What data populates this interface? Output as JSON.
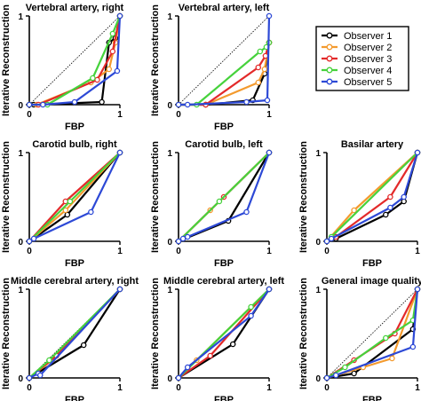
{
  "chart_data": [
    {
      "type": "line",
      "title": "Vertebral artery, right",
      "xlabel": "FBP",
      "ylabel": "Iterative Reconstruction",
      "xlim": [
        0,
        1
      ],
      "ylim": [
        0,
        1
      ],
      "xticks": [
        "0",
        "1"
      ],
      "yticks": [
        "0",
        "1"
      ],
      "diagonal": true,
      "series": [
        {
          "name": "Observer 1",
          "x": [
            0,
            0.05,
            0.8,
            0.88,
            0.95,
            1
          ],
          "y": [
            0,
            0,
            0.03,
            0.7,
            0.75,
            1
          ]
        },
        {
          "name": "Observer 2",
          "x": [
            0,
            0.08,
            0.68,
            0.88,
            0.95,
            1
          ],
          "y": [
            0,
            0,
            0.25,
            0.4,
            0.7,
            1
          ]
        },
        {
          "name": "Observer 3",
          "x": [
            0,
            0.1,
            0.75,
            0.92,
            1
          ],
          "y": [
            0,
            0,
            0.28,
            0.6,
            1
          ]
        },
        {
          "name": "Observer 4",
          "x": [
            0,
            0.2,
            0.7,
            0.92,
            1
          ],
          "y": [
            0,
            0,
            0.3,
            0.8,
            1
          ]
        },
        {
          "name": "Observer 5",
          "x": [
            0,
            0.15,
            0.5,
            0.97,
            1
          ],
          "y": [
            0,
            0,
            0.03,
            0.38,
            1
          ]
        }
      ]
    },
    {
      "type": "line",
      "title": "Vertebral artery, left",
      "xlabel": "FBP",
      "ylabel": "Iterative Reconstruction",
      "xlim": [
        0,
        1
      ],
      "ylim": [
        0,
        1
      ],
      "xticks": [
        "0",
        "1"
      ],
      "yticks": [
        "0",
        "1"
      ],
      "diagonal": true,
      "series": [
        {
          "name": "Observer 1",
          "x": [
            0,
            0.3,
            0.82,
            0.95,
            1
          ],
          "y": [
            0,
            0,
            0.05,
            0.35,
            0.7
          ]
        },
        {
          "name": "Observer 2",
          "x": [
            0,
            0.3,
            0.88,
            0.95,
            1
          ],
          "y": [
            0,
            0,
            0.25,
            0.4,
            0.7
          ]
        },
        {
          "name": "Observer 3",
          "x": [
            0,
            0.3,
            0.88,
            0.96,
            1
          ],
          "y": [
            0,
            0,
            0.42,
            0.55,
            0.7
          ]
        },
        {
          "name": "Observer 4",
          "x": [
            0,
            0.2,
            0.9,
            0.97,
            1
          ],
          "y": [
            0,
            0,
            0.6,
            0.65,
            0.7
          ]
        },
        {
          "name": "Observer 5",
          "x": [
            0,
            0.1,
            0.75,
            0.98,
            1
          ],
          "y": [
            0,
            0,
            0.03,
            0.05,
            1
          ]
        }
      ]
    },
    {
      "type": "line",
      "title": "Carotid bulb, right",
      "xlabel": "FBP",
      "ylabel": "Iterative Reconstruction",
      "xlim": [
        0,
        1
      ],
      "ylim": [
        0,
        1
      ],
      "xticks": [
        "0",
        "1"
      ],
      "yticks": [
        "0",
        "1"
      ],
      "diagonal": true,
      "series": [
        {
          "name": "Observer 1",
          "x": [
            0,
            0.42,
            1
          ],
          "y": [
            0,
            0.3,
            1
          ]
        },
        {
          "name": "Observer 2",
          "x": [
            0,
            0.4,
            1
          ],
          "y": [
            0,
            0.35,
            1
          ]
        },
        {
          "name": "Observer 3",
          "x": [
            0,
            0.4,
            1
          ],
          "y": [
            0,
            0.45,
            1
          ]
        },
        {
          "name": "Observer 4",
          "x": [
            0,
            0.45,
            1
          ],
          "y": [
            0,
            0.45,
            1
          ]
        },
        {
          "name": "Observer 5",
          "x": [
            0,
            0.05,
            0.68,
            1
          ],
          "y": [
            0,
            0.03,
            0.33,
            1
          ]
        }
      ]
    },
    {
      "type": "line",
      "title": "Carotid bulb, left",
      "xlabel": "FBP",
      "ylabel": "Iterative Reconstruction",
      "xlim": [
        0,
        1
      ],
      "ylim": [
        0,
        1
      ],
      "xticks": [
        "0",
        "1"
      ],
      "yticks": [
        "0",
        "1"
      ],
      "diagonal": false,
      "series": [
        {
          "name": "Observer 1",
          "x": [
            0,
            0.55,
            1
          ],
          "y": [
            0,
            0.23,
            1
          ]
        },
        {
          "name": "Observer 2",
          "x": [
            0,
            0.35,
            1
          ],
          "y": [
            0,
            0.35,
            1
          ]
        },
        {
          "name": "Observer 3",
          "x": [
            0,
            0.5,
            1
          ],
          "y": [
            0,
            0.5,
            1
          ]
        },
        {
          "name": "Observer 4",
          "x": [
            0,
            0.45,
            1
          ],
          "y": [
            0,
            0.45,
            1
          ]
        },
        {
          "name": "Observer 5",
          "x": [
            0,
            0.05,
            0.1,
            0.75,
            1
          ],
          "y": [
            0,
            0.03,
            0.05,
            0.33,
            1
          ]
        }
      ]
    },
    {
      "type": "line",
      "title": "Basilar artery",
      "xlabel": "FBP",
      "ylabel": "Iterative Reconstruction",
      "xlim": [
        0,
        1
      ],
      "ylim": [
        0,
        1
      ],
      "xticks": [
        "0",
        "1"
      ],
      "yticks": [
        "0",
        "1"
      ],
      "diagonal": true,
      "series": [
        {
          "name": "Observer 1",
          "x": [
            0,
            0.1,
            0.65,
            0.85,
            1
          ],
          "y": [
            0,
            0.03,
            0.3,
            0.45,
            1
          ]
        },
        {
          "name": "Observer 2",
          "x": [
            0,
            0.3,
            1
          ],
          "y": [
            0,
            0.35,
            1
          ]
        },
        {
          "name": "Observer 3",
          "x": [
            0,
            0.1,
            0.7,
            1
          ],
          "y": [
            0,
            0.05,
            0.5,
            1
          ]
        },
        {
          "name": "Observer 4",
          "x": [
            0,
            0.05,
            1
          ],
          "y": [
            0,
            0.05,
            1
          ]
        },
        {
          "name": "Observer 5",
          "x": [
            0,
            0.05,
            0.7,
            0.85,
            1
          ],
          "y": [
            0,
            0.03,
            0.38,
            0.5,
            1
          ]
        }
      ]
    },
    {
      "type": "line",
      "title": "Middle cerebral artery, right",
      "xlabel": "FBP",
      "ylabel": "Iterative Reconstruction",
      "xlim": [
        0,
        1
      ],
      "ylim": [
        0,
        1
      ],
      "xticks": [
        "0",
        "1"
      ],
      "yticks": [
        "0",
        "1"
      ],
      "diagonal": true,
      "series": [
        {
          "name": "Observer 1",
          "x": [
            0,
            0.6,
            1
          ],
          "y": [
            0,
            0.37,
            1
          ]
        },
        {
          "name": "Observer 2",
          "x": [
            0,
            0.25,
            1
          ],
          "y": [
            0,
            0.2,
            1
          ]
        },
        {
          "name": "Observer 3",
          "x": [
            0,
            0.3,
            1
          ],
          "y": [
            0,
            0.25,
            1
          ]
        },
        {
          "name": "Observer 4",
          "x": [
            0,
            0.22,
            1
          ],
          "y": [
            0,
            0.2,
            1
          ]
        },
        {
          "name": "Observer 5",
          "x": [
            0,
            0.1,
            0.12,
            1
          ],
          "y": [
            0,
            0.05,
            0.03,
            1
          ]
        }
      ]
    },
    {
      "type": "line",
      "title": "Middle cerebral artery, left",
      "xlabel": "FBP",
      "ylabel": "Iterative Reconstruction",
      "xlim": [
        0,
        1
      ],
      "ylim": [
        0,
        1
      ],
      "xticks": [
        "0",
        "1"
      ],
      "yticks": [
        "0",
        "1"
      ],
      "diagonal": true,
      "series": [
        {
          "name": "Observer 1",
          "x": [
            0,
            0.6,
            1
          ],
          "y": [
            0,
            0.38,
            1
          ]
        },
        {
          "name": "Observer 2",
          "x": [
            0,
            0.2,
            1
          ],
          "y": [
            0,
            0.2,
            1
          ]
        },
        {
          "name": "Observer 3",
          "x": [
            0,
            0.35,
            1
          ],
          "y": [
            0,
            0.25,
            1
          ]
        },
        {
          "name": "Observer 4",
          "x": [
            0,
            0.8,
            1
          ],
          "y": [
            0,
            0.8,
            1
          ]
        },
        {
          "name": "Observer 5",
          "x": [
            0,
            0.1,
            0.8,
            1
          ],
          "y": [
            0,
            0.12,
            0.7,
            1
          ]
        }
      ]
    },
    {
      "type": "line",
      "title": "General image quality",
      "xlabel": "FBP",
      "ylabel": "Iterative Reconstruction",
      "xlim": [
        0,
        1
      ],
      "ylim": [
        0,
        1
      ],
      "xticks": [
        "0",
        "1"
      ],
      "yticks": [
        "0",
        "1"
      ],
      "diagonal": true,
      "series": [
        {
          "name": "Observer 1",
          "x": [
            0,
            0.3,
            0.95,
            1
          ],
          "y": [
            0,
            0.05,
            0.55,
            1
          ]
        },
        {
          "name": "Observer 2",
          "x": [
            0,
            0.4,
            0.72,
            1
          ],
          "y": [
            0,
            0.12,
            0.22,
            1
          ]
        },
        {
          "name": "Observer 3",
          "x": [
            0,
            0.3,
            0.75,
            1
          ],
          "y": [
            0,
            0.2,
            0.5,
            1
          ]
        },
        {
          "name": "Observer 4",
          "x": [
            0,
            0.2,
            0.65,
            0.95,
            1
          ],
          "y": [
            0,
            0.12,
            0.45,
            0.65,
            1
          ]
        },
        {
          "name": "Observer 5",
          "x": [
            0,
            0.1,
            0.95,
            1
          ],
          "y": [
            0,
            0.03,
            0.35,
            1
          ]
        }
      ]
    }
  ],
  "legend": {
    "placement": "top-right",
    "entries": [
      "Observer 1",
      "Observer 2",
      "Observer 3",
      "Observer 4",
      "Observer 5"
    ],
    "colors": [
      "#000000",
      "#f39a2e",
      "#e32a2a",
      "#46d23c",
      "#2d49d6"
    ]
  }
}
